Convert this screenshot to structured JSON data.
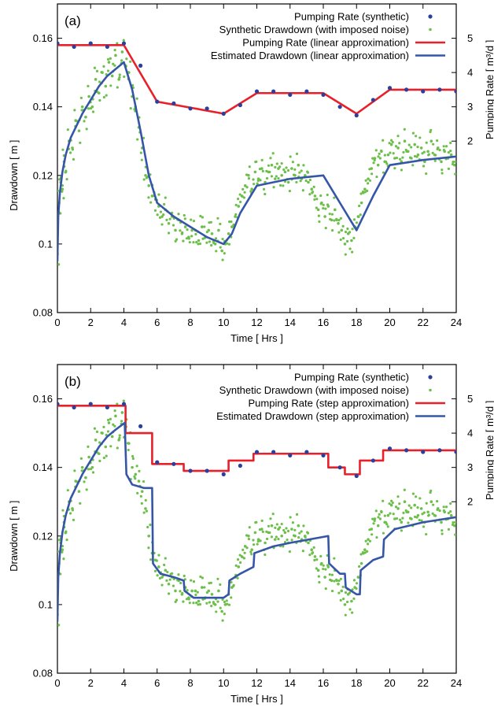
{
  "chart_data": [
    {
      "type": "line",
      "panel_label": "(a)",
      "xlabel": "Time [ Hrs ]",
      "ylabel_left": "Drawdown [ m ]",
      "ylabel_right": "Pumping Rate [ m³/d ]",
      "xlim": [
        0,
        24
      ],
      "ylim_left": [
        0.08,
        0.17
      ],
      "ylim_right": [
        -3,
        6
      ],
      "x_ticks": [
        "0",
        "2",
        "4",
        "6",
        "8",
        "10",
        "12",
        "14",
        "16",
        "18",
        "20",
        "22",
        "24"
      ],
      "y_left_ticks": [
        "0.08",
        "0.1",
        "0.12",
        "0.14",
        "0.16"
      ],
      "y_right_ticks": [
        "2",
        "3",
        "4",
        "5"
      ],
      "legend": [
        {
          "label": "Pumping Rate (synthetic)",
          "color": "#2b3f9b",
          "style": "dot"
        },
        {
          "label": "Synthetic Drawdown (with imposed noise)",
          "color": "#6cc04a",
          "style": "smalldot"
        },
        {
          "label": "Pumping Rate (linear approximation)",
          "color": "#e8202a",
          "style": "line"
        },
        {
          "label": "Estimated Drawdown (linear approximation)",
          "color": "#3556a8",
          "style": "line"
        }
      ],
      "series": [
        {
          "name": "Pumping Rate (synthetic)",
          "axis": "right",
          "kind": "points",
          "x": [
            0,
            1,
            2,
            3,
            4,
            5,
            6,
            7,
            8,
            9,
            10,
            11,
            12,
            13,
            14,
            15,
            16,
            17,
            18,
            19,
            20,
            21,
            22,
            23,
            24
          ],
          "y": [
            4.85,
            4.75,
            4.85,
            4.75,
            4.85,
            4.2,
            3.15,
            3.1,
            2.95,
            2.95,
            2.8,
            3.05,
            3.45,
            3.45,
            3.35,
            3.45,
            3.35,
            3.0,
            2.75,
            3.2,
            3.55,
            3.5,
            3.45,
            3.5,
            3.45
          ]
        },
        {
          "name": "Pumping Rate (linear approximation)",
          "axis": "right",
          "kind": "line",
          "x": [
            0,
            4,
            6,
            10,
            12,
            16,
            18,
            20,
            24
          ],
          "y": [
            4.8,
            4.8,
            3.15,
            2.8,
            3.4,
            3.4,
            2.8,
            3.5,
            3.5
          ]
        },
        {
          "name": "Estimated Drawdown (linear approximation)",
          "axis": "left",
          "kind": "line",
          "x": [
            0,
            0.05,
            0.15,
            0.3,
            0.5,
            0.8,
            1,
            1.5,
            2,
            2.5,
            3,
            3.5,
            4,
            4.5,
            5,
            5.5,
            6,
            7,
            8,
            9,
            10,
            10.5,
            11,
            12,
            13,
            14,
            15,
            16,
            17,
            18,
            19,
            20,
            22,
            24
          ],
          "y": [
            0.095,
            0.108,
            0.115,
            0.121,
            0.126,
            0.131,
            0.133,
            0.138,
            0.142,
            0.146,
            0.149,
            0.151,
            0.153,
            0.145,
            0.133,
            0.12,
            0.112,
            0.108,
            0.105,
            0.102,
            0.1,
            0.103,
            0.109,
            0.117,
            0.118,
            0.119,
            0.1195,
            0.12,
            0.112,
            0.104,
            0.114,
            0.123,
            0.1245,
            0.1255
          ]
        },
        {
          "name": "Synthetic Drawdown (with imposed noise)",
          "axis": "left",
          "kind": "scatter",
          "x": [
            0,
            0.1,
            0.2,
            0.3,
            0.4,
            0.5,
            0.7,
            0.9,
            1.1,
            1.3,
            1.5,
            1.7,
            1.9,
            2.1,
            2.3,
            2.5,
            2.7,
            2.9,
            3.1,
            3.3,
            3.5,
            3.7,
            3.9,
            4.1,
            4.3,
            4.5,
            4.7,
            4.9,
            5.1,
            5.3,
            5.5,
            5.7,
            5.9,
            6.1,
            6.3,
            6.5,
            6.7,
            6.9,
            7.1,
            7.3,
            7.5,
            7.7,
            7.9,
            8.1,
            8.3,
            8.5,
            8.7,
            8.9,
            9.1,
            9.3,
            9.5,
            9.7,
            9.9,
            10.1,
            10.3,
            10.5,
            10.7,
            10.9,
            11.1,
            11.3,
            11.5,
            11.7,
            11.9,
            12.1,
            12.3,
            12.5,
            12.7,
            12.9,
            13.1,
            13.3,
            13.5,
            13.7,
            13.9,
            14.1,
            14.3,
            14.5,
            14.7,
            14.9,
            15.1,
            15.3,
            15.5,
            15.7,
            15.9,
            16.1,
            16.3,
            16.5,
            16.7,
            16.9,
            17.1,
            17.3,
            17.5,
            17.7,
            17.9,
            18.1,
            18.3,
            18.5,
            18.7,
            18.9,
            19.1,
            19.3,
            19.5,
            19.7,
            19.9,
            20.1,
            20.3,
            20.5,
            20.7,
            20.9,
            21.1,
            21.3,
            21.5,
            21.7,
            21.9,
            22.1,
            22.3,
            22.5,
            22.7,
            22.9,
            23.1,
            23.3,
            23.5,
            23.7,
            23.9
          ],
          "y": [
            0.097,
            0.112,
            0.118,
            0.116,
            0.124,
            0.121,
            0.13,
            0.128,
            0.136,
            0.133,
            0.14,
            0.137,
            0.143,
            0.14,
            0.148,
            0.144,
            0.15,
            0.146,
            0.153,
            0.149,
            0.155,
            0.148,
            0.156,
            0.152,
            0.15,
            0.143,
            0.14,
            0.134,
            0.128,
            0.12,
            0.117,
            0.114,
            0.113,
            0.111,
            0.108,
            0.11,
            0.106,
            0.108,
            0.104,
            0.107,
            0.103,
            0.105,
            0.102,
            0.104,
            0.104,
            0.101,
            0.105,
            0.102,
            0.104,
            0.103,
            0.1,
            0.104,
            0.098,
            0.1,
            0.103,
            0.105,
            0.108,
            0.111,
            0.114,
            0.117,
            0.12,
            0.116,
            0.121,
            0.119,
            0.122,
            0.118,
            0.121,
            0.123,
            0.119,
            0.122,
            0.12,
            0.121,
            0.118,
            0.122,
            0.12,
            0.123,
            0.119,
            0.12,
            0.118,
            0.116,
            0.114,
            0.11,
            0.112,
            0.108,
            0.111,
            0.107,
            0.11,
            0.106,
            0.104,
            0.1,
            0.103,
            0.101,
            0.105,
            0.108,
            0.112,
            0.116,
            0.119,
            0.122,
            0.125,
            0.123,
            0.127,
            0.124,
            0.126,
            0.129,
            0.125,
            0.128,
            0.124,
            0.13,
            0.127,
            0.125,
            0.129,
            0.126,
            0.128,
            0.124,
            0.127,
            0.13,
            0.126,
            0.128,
            0.124,
            0.127,
            0.125,
            0.126,
            0.123
          ]
        }
      ]
    },
    {
      "type": "line",
      "panel_label": "(b)",
      "xlabel": "Time [ Hrs ]",
      "ylabel_left": "Drawdown [ m ]",
      "ylabel_right": "Pumping Rate [ m³/d ]",
      "xlim": [
        0,
        24
      ],
      "ylim_left": [
        0.08,
        0.17
      ],
      "ylim_right": [
        -3,
        6
      ],
      "x_ticks": [
        "0",
        "2",
        "4",
        "6",
        "8",
        "10",
        "12",
        "14",
        "16",
        "18",
        "20",
        "22",
        "24"
      ],
      "y_left_ticks": [
        "0.08",
        "0.1",
        "0.12",
        "0.14",
        "0.16"
      ],
      "y_right_ticks": [
        "2",
        "3",
        "4",
        "5"
      ],
      "legend": [
        {
          "label": "Pumping Rate (synthetic)",
          "color": "#2b3f9b",
          "style": "dot"
        },
        {
          "label": "Synthetic Drawdown (with imposed noise)",
          "color": "#6cc04a",
          "style": "smalldot"
        },
        {
          "label": "Pumping Rate (step approximation)",
          "color": "#e8202a",
          "style": "line"
        },
        {
          "label": "Estimated Drawdown (step approximation)",
          "color": "#3556a8",
          "style": "line"
        }
      ],
      "series": [
        {
          "name": "Pumping Rate (synthetic)",
          "axis": "right",
          "kind": "points",
          "x": [
            0,
            1,
            2,
            3,
            4,
            5,
            6,
            7,
            8,
            9,
            10,
            11,
            12,
            13,
            14,
            15,
            16,
            17,
            18,
            19,
            20,
            21,
            22,
            23,
            24
          ],
          "y": [
            4.85,
            4.75,
            4.85,
            4.75,
            4.85,
            4.2,
            3.15,
            3.1,
            2.9,
            2.9,
            2.8,
            3.05,
            3.45,
            3.45,
            3.35,
            3.45,
            3.35,
            3.0,
            2.75,
            3.2,
            3.55,
            3.5,
            3.45,
            3.5,
            3.45
          ]
        },
        {
          "name": "Pumping Rate (step approximation)",
          "axis": "right",
          "kind": "line",
          "x": [
            0,
            4.1,
            4.1,
            5.7,
            5.7,
            7.6,
            7.6,
            10.3,
            10.3,
            11.8,
            11.8,
            16.3,
            16.3,
            17.3,
            17.3,
            18.2,
            18.2,
            19.6,
            19.6,
            24
          ],
          "y": [
            4.8,
            4.8,
            4.0,
            4.0,
            3.1,
            3.1,
            2.9,
            2.9,
            3.2,
            3.2,
            3.4,
            3.4,
            3.0,
            3.0,
            2.8,
            2.8,
            3.2,
            3.2,
            3.5,
            3.5
          ]
        },
        {
          "name": "Estimated Drawdown (step approximation)",
          "axis": "left",
          "kind": "line",
          "x": [
            0,
            0.05,
            0.15,
            0.3,
            0.5,
            0.8,
            1,
            1.5,
            2,
            2.5,
            3,
            3.5,
            4.05,
            4.15,
            4.5,
            5.2,
            5.7,
            5.75,
            6.2,
            7,
            7.6,
            7.65,
            8.2,
            9,
            10,
            10.3,
            10.35,
            11,
            11.8,
            11.85,
            13,
            14,
            16.3,
            16.35,
            17,
            17.3,
            17.35,
            18,
            18.2,
            18.25,
            19,
            19.6,
            19.65,
            20.3,
            22,
            24
          ],
          "y": [
            0.095,
            0.108,
            0.115,
            0.121,
            0.126,
            0.131,
            0.133,
            0.138,
            0.142,
            0.146,
            0.149,
            0.151,
            0.153,
            0.138,
            0.135,
            0.134,
            0.134,
            0.112,
            0.109,
            0.108,
            0.107,
            0.104,
            0.102,
            0.102,
            0.102,
            0.103,
            0.107,
            0.109,
            0.111,
            0.115,
            0.117,
            0.118,
            0.12,
            0.112,
            0.109,
            0.109,
            0.105,
            0.103,
            0.103,
            0.11,
            0.113,
            0.114,
            0.119,
            0.122,
            0.124,
            0.1255
          ]
        },
        {
          "name": "Synthetic Drawdown (with imposed noise)",
          "axis": "left",
          "kind": "scatter",
          "x": [
            0,
            0.1,
            0.2,
            0.3,
            0.4,
            0.5,
            0.7,
            0.9,
            1.1,
            1.3,
            1.5,
            1.7,
            1.9,
            2.1,
            2.3,
            2.5,
            2.7,
            2.9,
            3.1,
            3.3,
            3.5,
            3.7,
            3.9,
            4.1,
            4.3,
            4.5,
            4.7,
            4.9,
            5.1,
            5.3,
            5.5,
            5.7,
            5.9,
            6.1,
            6.3,
            6.5,
            6.7,
            6.9,
            7.1,
            7.3,
            7.5,
            7.7,
            7.9,
            8.1,
            8.3,
            8.5,
            8.7,
            8.9,
            9.1,
            9.3,
            9.5,
            9.7,
            9.9,
            10.1,
            10.3,
            10.5,
            10.7,
            10.9,
            11.1,
            11.3,
            11.5,
            11.7,
            11.9,
            12.1,
            12.3,
            12.5,
            12.7,
            12.9,
            13.1,
            13.3,
            13.5,
            13.7,
            13.9,
            14.1,
            14.3,
            14.5,
            14.7,
            14.9,
            15.1,
            15.3,
            15.5,
            15.7,
            15.9,
            16.1,
            16.3,
            16.5,
            16.7,
            16.9,
            17.1,
            17.3,
            17.5,
            17.7,
            17.9,
            18.1,
            18.3,
            18.5,
            18.7,
            18.9,
            19.1,
            19.3,
            19.5,
            19.7,
            19.9,
            20.1,
            20.3,
            20.5,
            20.7,
            20.9,
            21.1,
            21.3,
            21.5,
            21.7,
            21.9,
            22.1,
            22.3,
            22.5,
            22.7,
            22.9,
            23.1,
            23.3,
            23.5,
            23.7,
            23.9
          ],
          "y": [
            0.097,
            0.112,
            0.118,
            0.116,
            0.124,
            0.121,
            0.13,
            0.128,
            0.136,
            0.133,
            0.14,
            0.137,
            0.143,
            0.14,
            0.148,
            0.144,
            0.15,
            0.146,
            0.153,
            0.149,
            0.155,
            0.148,
            0.156,
            0.152,
            0.147,
            0.14,
            0.138,
            0.136,
            0.133,
            0.128,
            0.12,
            0.115,
            0.113,
            0.111,
            0.108,
            0.11,
            0.106,
            0.108,
            0.104,
            0.107,
            0.103,
            0.105,
            0.102,
            0.104,
            0.104,
            0.101,
            0.105,
            0.102,
            0.104,
            0.103,
            0.1,
            0.104,
            0.098,
            0.1,
            0.103,
            0.105,
            0.108,
            0.111,
            0.114,
            0.117,
            0.12,
            0.116,
            0.121,
            0.119,
            0.122,
            0.118,
            0.121,
            0.123,
            0.119,
            0.122,
            0.12,
            0.121,
            0.118,
            0.122,
            0.12,
            0.123,
            0.119,
            0.12,
            0.118,
            0.116,
            0.114,
            0.11,
            0.112,
            0.108,
            0.111,
            0.107,
            0.11,
            0.106,
            0.104,
            0.1,
            0.103,
            0.101,
            0.105,
            0.108,
            0.112,
            0.116,
            0.119,
            0.122,
            0.125,
            0.123,
            0.127,
            0.124,
            0.126,
            0.129,
            0.125,
            0.128,
            0.124,
            0.13,
            0.127,
            0.125,
            0.129,
            0.126,
            0.128,
            0.124,
            0.127,
            0.13,
            0.126,
            0.128,
            0.124,
            0.127,
            0.125,
            0.126,
            0.123
          ]
        }
      ]
    }
  ]
}
